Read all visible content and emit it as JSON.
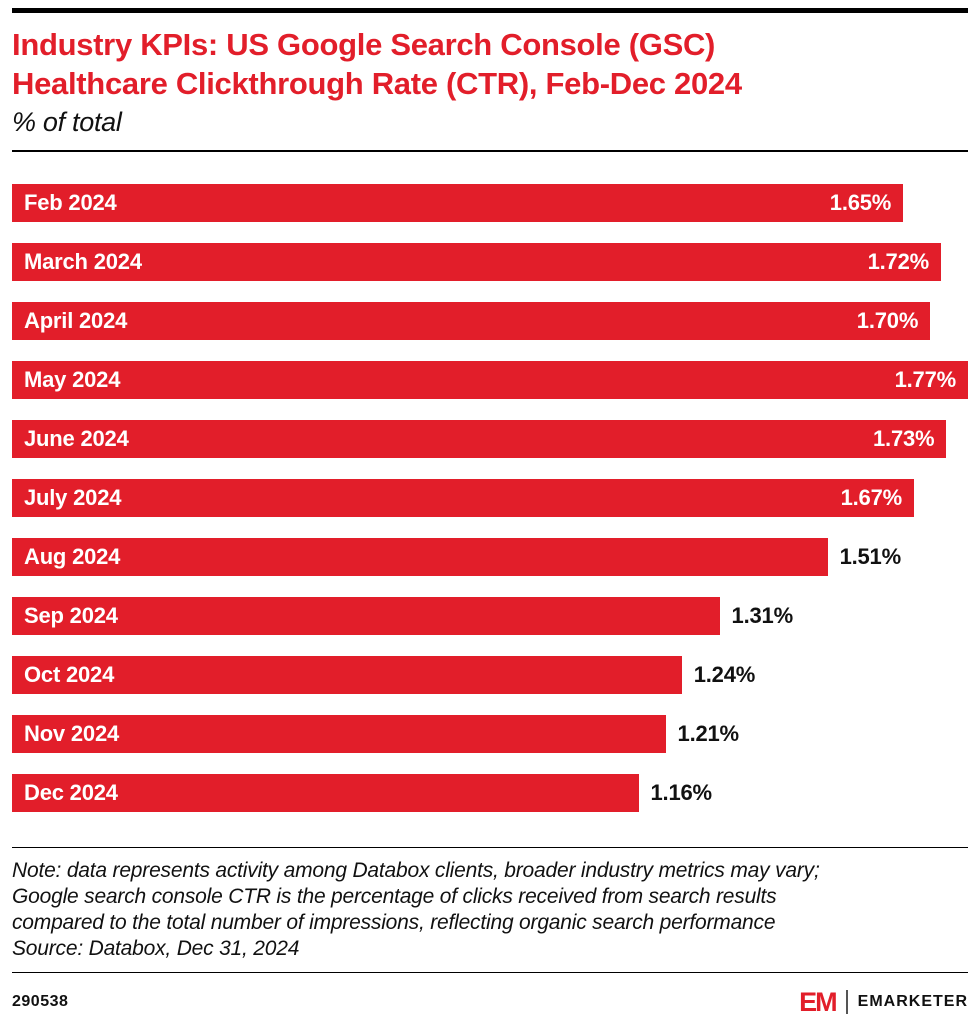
{
  "header": {
    "title_line1": "Industry KPIs: US Google Search Console (GSC)",
    "title_line2": "Healthcare Clickthrough Rate (CTR), Feb-Dec 2024",
    "subtitle": "% of total"
  },
  "chart_data": {
    "type": "bar",
    "orientation": "horizontal",
    "title": "Industry KPIs: US Google Search Console (GSC) Healthcare Clickthrough Rate (CTR), Feb-Dec 2024",
    "subtitle": "% of total",
    "categories": [
      "Feb 2024",
      "March 2024",
      "April 2024",
      "May 2024",
      "June 2024",
      "July 2024",
      "Aug 2024",
      "Sep 2024",
      "Oct 2024",
      "Nov 2024",
      "Dec 2024"
    ],
    "values": [
      1.65,
      1.72,
      1.7,
      1.77,
      1.73,
      1.67,
      1.51,
      1.31,
      1.24,
      1.21,
      1.16
    ],
    "value_labels": [
      "1.65%",
      "1.72%",
      "1.70%",
      "1.77%",
      "1.73%",
      "1.67%",
      "1.51%",
      "1.31%",
      "1.24%",
      "1.21%",
      "1.16%"
    ],
    "xlabel": "",
    "ylabel": "",
    "xlim": [
      0,
      1.77
    ],
    "bar_color": "#e21e2a",
    "grid": false,
    "legend": "none"
  },
  "note": {
    "line1": "Note: data represents activity among Databox clients, broader industry metrics may vary;",
    "line2": "Google search console CTR is the percentage of clicks received from search results",
    "line3": "compared to the total number of impressions, reflecting organic search performance",
    "line4": "Source: Databox, Dec 31, 2024"
  },
  "footer": {
    "chart_id": "290538",
    "logo_text": "EM",
    "brand_name": "EMARKETER"
  }
}
